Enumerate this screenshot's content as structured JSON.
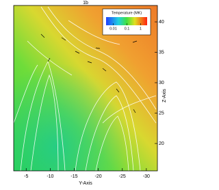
{
  "chart_data": {
    "type": "streamline",
    "title": "1b",
    "xlabel": "Y-Axis",
    "ylabel": "Z-Axis",
    "xlim": [
      -2.4,
      -32.3
    ],
    "xticks": [
      -5,
      -10,
      -15,
      -20,
      -25,
      -30
    ],
    "ylim": [
      15.5,
      42.7
    ],
    "yticks": [
      20,
      25,
      30,
      35,
      40
    ],
    "colorbar": {
      "label": "Temperature (MK)",
      "log": true,
      "lim": [
        0.003,
        3
      ],
      "ticks": [
        0.01,
        0.1,
        1
      ]
    }
  }
}
